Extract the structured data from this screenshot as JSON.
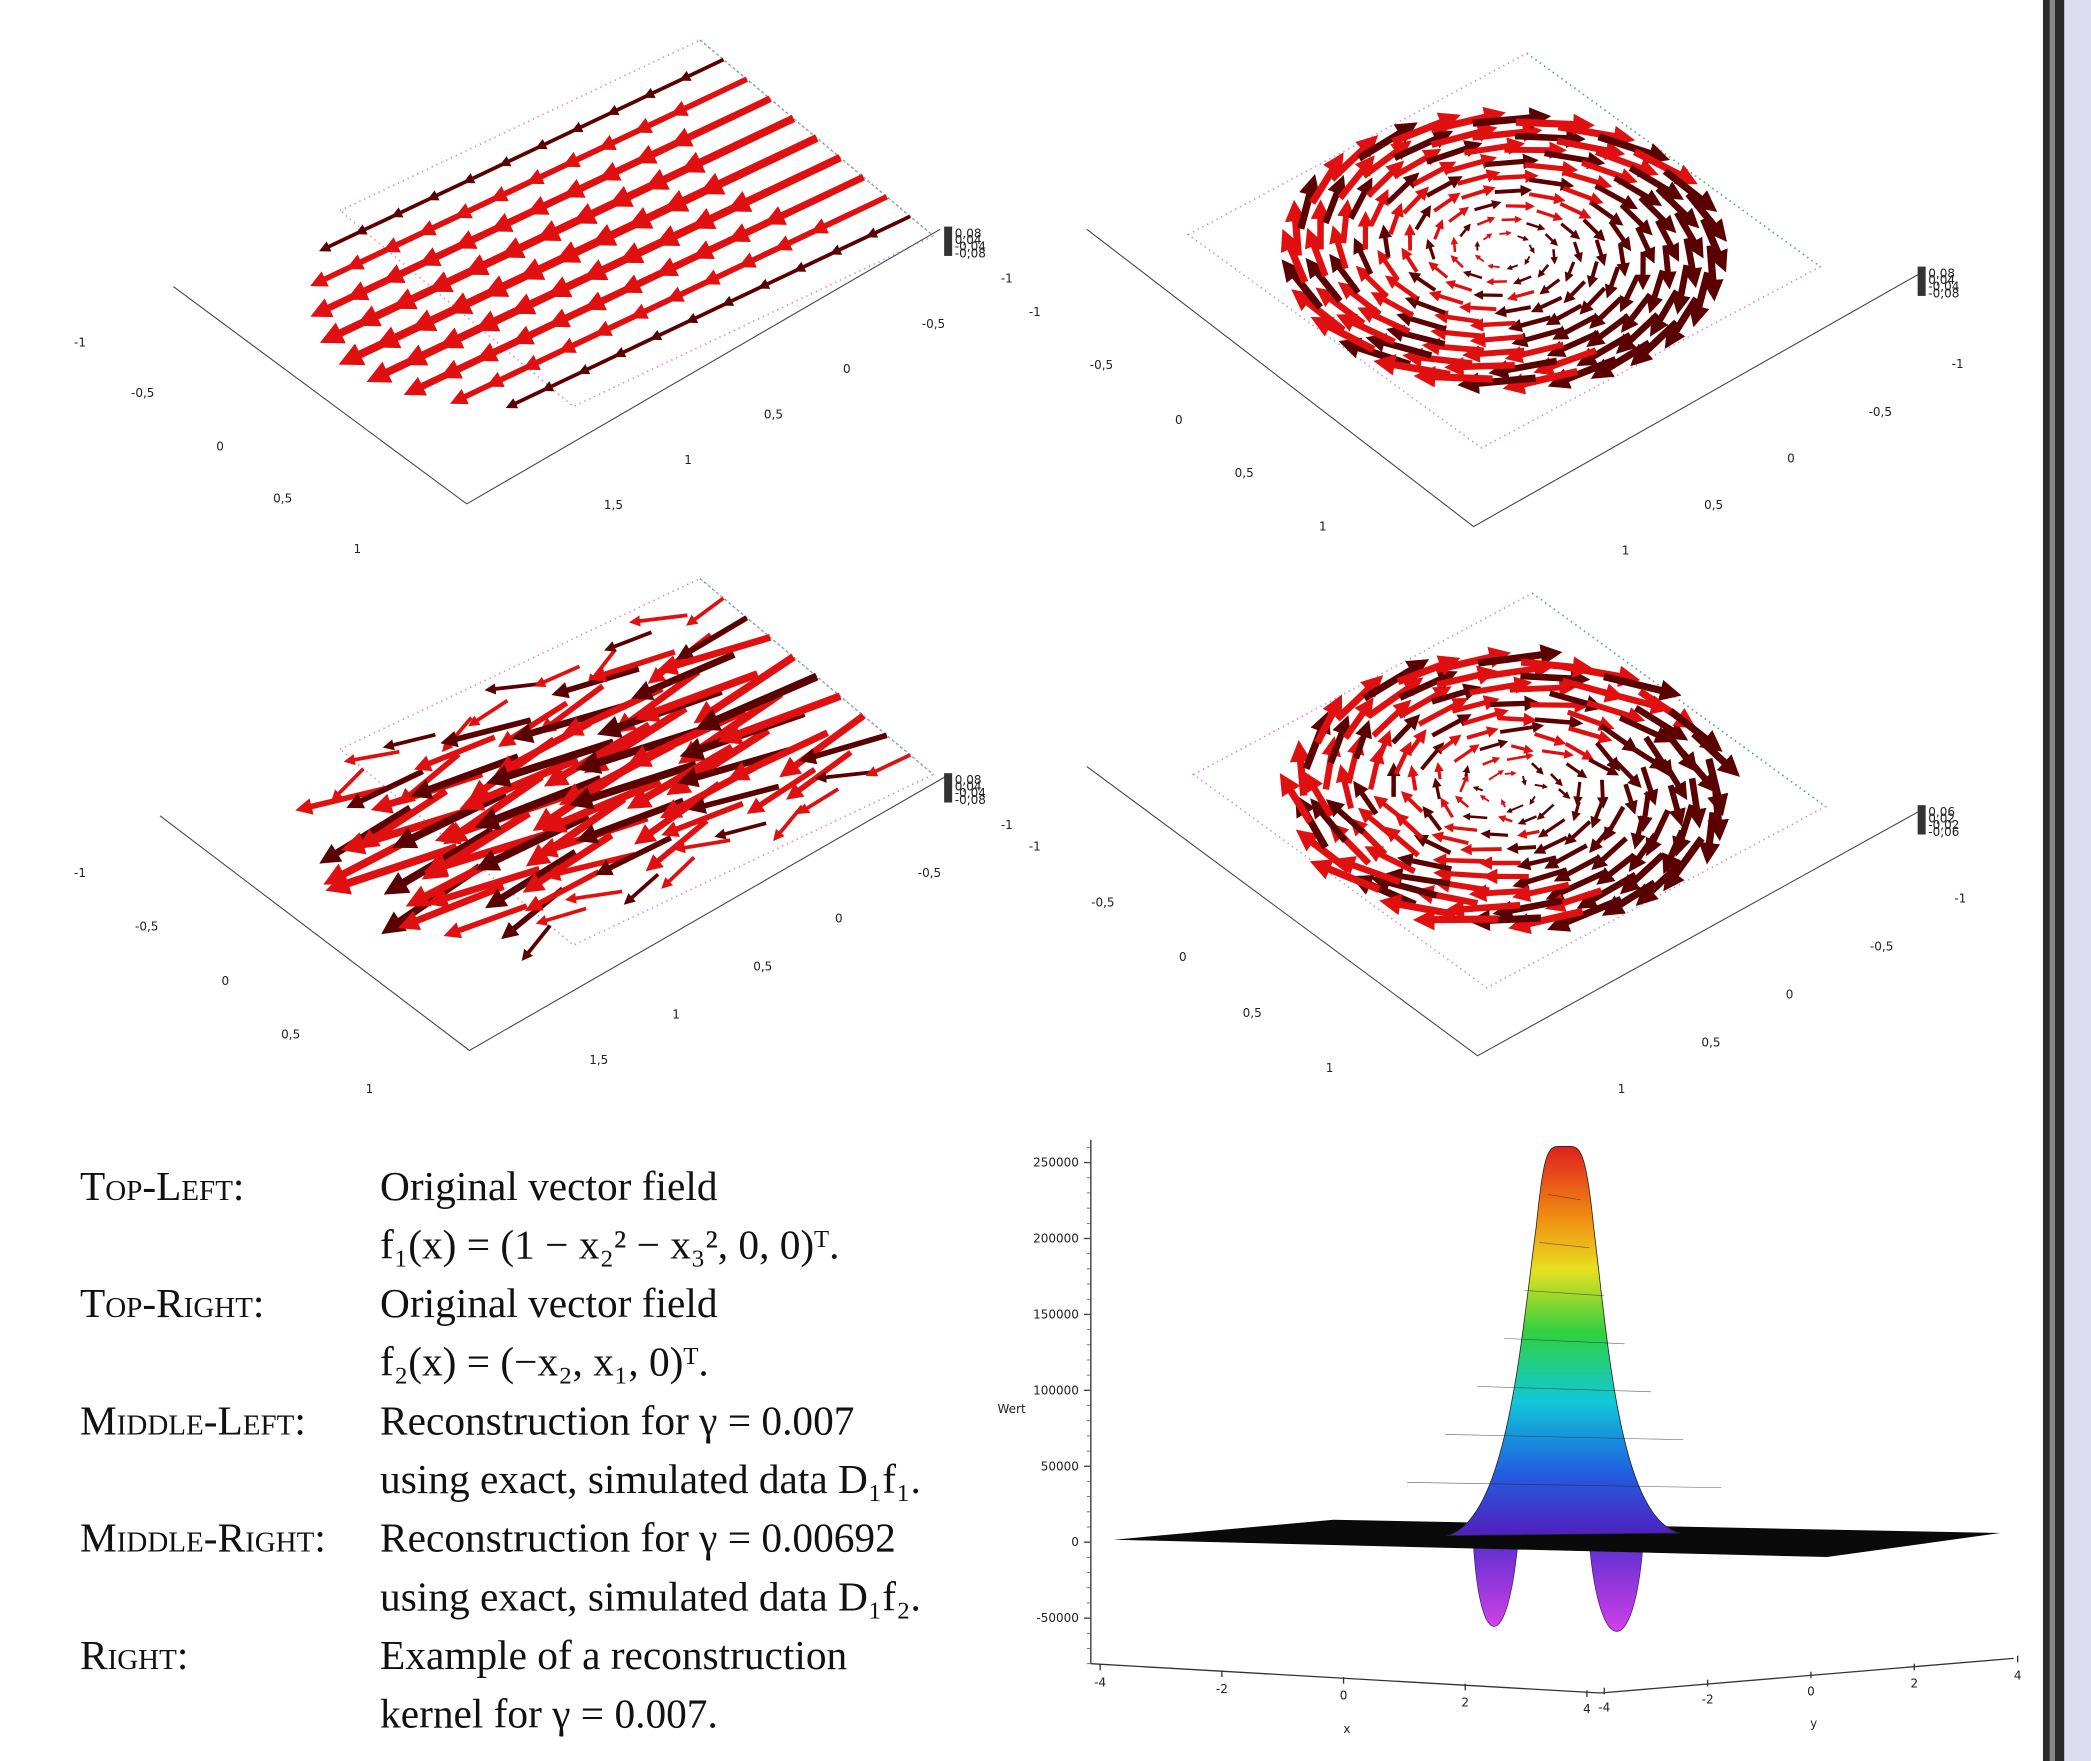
{
  "vector_plots": [
    {
      "ticks_left": [
        "-1",
        "-0,5",
        "0",
        "0,5",
        "1"
      ],
      "ticks_right": [
        "1,5",
        "1",
        "0,5",
        "0",
        "-0,5",
        "-1"
      ],
      "ticks_z": [
        "0,08",
        "0,04",
        "-0,04",
        "-0,08"
      ]
    },
    {
      "ticks_left": [
        "-1",
        "-0,5",
        "0",
        "0,5",
        "1"
      ],
      "ticks_right": [
        "1",
        "0,5",
        "0",
        "-0,5",
        "-1"
      ],
      "ticks_z": [
        "0,08",
        "0,04",
        "-0,04",
        "-0,08"
      ]
    },
    {
      "ticks_left": [
        "-1",
        "-0,5",
        "0",
        "0,5",
        "1"
      ],
      "ticks_right": [
        "1,5",
        "1",
        "0,5",
        "0",
        "-0,5",
        "-1"
      ],
      "ticks_z": [
        "0,08",
        "0,04",
        "-0,04",
        "-0,08"
      ]
    },
    {
      "ticks_left": [
        "-1",
        "-0,5",
        "0",
        "0,5",
        "1"
      ],
      "ticks_right": [
        "1",
        "0,5",
        "0",
        "-0,5",
        "-1"
      ],
      "ticks_z": [
        "0,06",
        "0,02",
        "-0,02",
        "-0,06"
      ]
    }
  ],
  "caption": [
    {
      "label": "Top-Left:",
      "lines": [
        "Original vector field",
        "f₁(x) = (1 − x₂² − x₃², 0, 0)ᵀ."
      ]
    },
    {
      "label": "Top-Right:",
      "lines": [
        "Original vector field",
        "f₂(x) = (−x₂, x₁, 0)ᵀ."
      ]
    },
    {
      "label": "Middle-Left:",
      "lines": [
        "Reconstruction for γ = 0.007",
        "using exact, simulated data D₁f₁."
      ]
    },
    {
      "label": "Middle-Right:",
      "lines": [
        "Reconstruction for γ = 0.00692",
        "using exact, simulated data D₁f₂."
      ]
    },
    {
      "label": "Right:",
      "lines": [
        "Example of a reconstruction",
        "kernel for γ = 0.007."
      ]
    }
  ],
  "chart_data": {
    "type": "surface",
    "zlabel": "Wert",
    "xlabel": "x",
    "ylabel": "y",
    "zlim": [
      -80000,
      265000
    ],
    "zticks": [
      -50000,
      0,
      50000,
      100000,
      150000,
      200000,
      250000
    ],
    "xlim": [
      -4,
      4
    ],
    "xticks": [
      -4,
      -2,
      0,
      2,
      4
    ],
    "ylim": [
      -4,
      4
    ],
    "yticks": [
      -4,
      -2,
      0,
      2,
      4
    ]
  }
}
